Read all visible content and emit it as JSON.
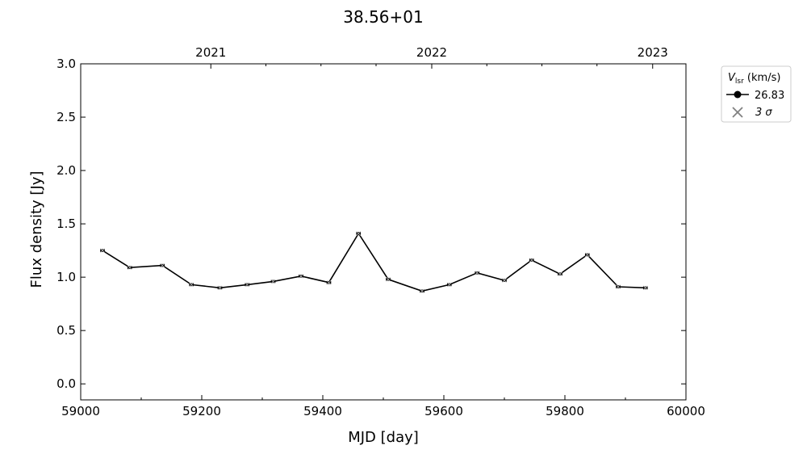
{
  "chart_data": {
    "type": "line",
    "title": "38.56+01",
    "xlabel": "MJD [day]",
    "ylabel": "Flux density [Jy]",
    "xlim": [
      59000,
      60000
    ],
    "ylim": [
      -0.15,
      3.0
    ],
    "x_ticks": [
      59000,
      59200,
      59400,
      59600,
      59800,
      60000
    ],
    "x_minor_ticks": [
      59100,
      59300,
      59500,
      59700,
      59900
    ],
    "y_ticks": [
      0.0,
      0.5,
      1.0,
      1.5,
      2.0,
      2.5,
      3.0
    ],
    "y_tick_labels": [
      "0.0",
      "0.5",
      "1.0",
      "1.5",
      "2.0",
      "2.5",
      "3.0"
    ],
    "top_axis": {
      "ticks": [
        {
          "x": 59215,
          "label": "2021"
        },
        {
          "x": 59580,
          "label": "2022"
        },
        {
          "x": 59945,
          "label": "2023"
        }
      ],
      "minor_ticks": [
        59306,
        59397,
        59488,
        59671,
        59762,
        59853
      ]
    },
    "legend": {
      "title_main": "V",
      "title_sub": "lsr",
      "title_unit": " (km/s)",
      "placement": "outside upper right",
      "entries": [
        {
          "label": "26.83",
          "marker": "circle-line",
          "color": "#000000"
        },
        {
          "label": "3 σ",
          "marker": "x",
          "color": "#808080"
        }
      ]
    },
    "series": [
      {
        "name": "26.83",
        "color": "#000000",
        "x": [
          59036,
          59081,
          59135,
          59183,
          59230,
          59275,
          59318,
          59364,
          59410,
          59459,
          59508,
          59564,
          59609,
          59655,
          59700,
          59745,
          59792,
          59837,
          59888,
          59933
        ],
        "y": [
          1.25,
          1.09,
          1.11,
          0.93,
          0.9,
          0.93,
          0.96,
          1.01,
          0.95,
          1.41,
          0.98,
          0.87,
          0.93,
          1.04,
          0.97,
          1.16,
          1.03,
          1.21,
          0.91,
          0.9
        ]
      }
    ]
  }
}
